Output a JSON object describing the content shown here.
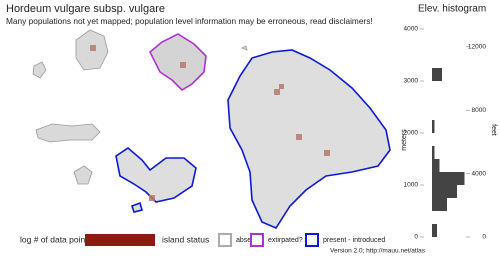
{
  "header": {
    "title": "Hordeum vulgare subsp. vulgare",
    "subtitle": "Many populations not yet mapped; population level information may be erroneous, read disclaimers!"
  },
  "legend": {
    "data_points_label": "log # of data points",
    "island_status_label": "island status",
    "items": [
      "absent",
      "extirpated?",
      "present - introduced"
    ]
  },
  "histogram": {
    "type": "histogram",
    "title": "Elev. histogram",
    "y_label": "meters",
    "y2_label": "feet",
    "bins": [
      0,
      250,
      500,
      750,
      1000,
      1250,
      1500,
      1750,
      2000,
      2250,
      2500,
      2750,
      3000,
      3250
    ],
    "counts": [
      2,
      0,
      6,
      10,
      13,
      3,
      1,
      0,
      1,
      0,
      0,
      0,
      4
    ],
    "ylim": [
      -100,
      4200
    ],
    "yticks": [
      0,
      1000,
      2000,
      3000,
      4000
    ],
    "y2ticks": [
      0,
      4000,
      8000,
      12000
    ]
  },
  "footer": "Version 2.0; http://mauu.net/atlas"
}
